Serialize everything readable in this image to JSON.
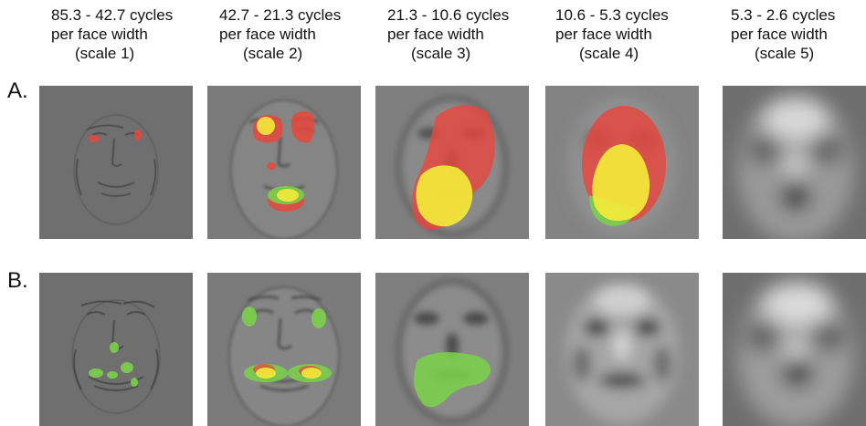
{
  "columns": [
    {
      "line1": "85.3 - 42.7 cycles",
      "line2": "per face width",
      "scale": "(scale 1)"
    },
    {
      "line1": "42.7 - 21.3 cycles",
      "line2": "per face width",
      "scale": "(scale 2)"
    },
    {
      "line1": "21.3 - 10.6 cycles",
      "line2": "per face width",
      "scale": "(scale 3)"
    },
    {
      "line1": "10.6 - 5.3 cycles",
      "line2": "per face width",
      "scale": "(scale 4)"
    },
    {
      "line1": "5.3 - 2.6 cycles",
      "line2": "per face width",
      "scale": "(scale 5)"
    }
  ],
  "rows": [
    {
      "label": "A."
    },
    {
      "label": "B."
    }
  ],
  "colors": {
    "red_overlay": "#e8463c",
    "yellow_overlay": "#f2ea3a",
    "green_overlay": "#7ad04a",
    "background_gray": "#7f7f7f"
  }
}
